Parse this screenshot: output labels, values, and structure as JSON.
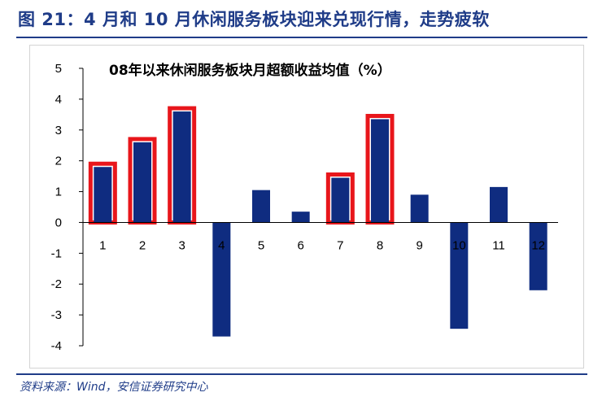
{
  "figure": {
    "title": "图 21：4 月和 10 月休闲服务板块迎来兑现行情，走势疲软",
    "source": "资料来源：Wind，安信证券研究中心"
  },
  "chart_data": {
    "type": "bar",
    "title": "08年以来休闲服务板块月超额收益均值（%）",
    "xlabel": "",
    "ylabel": "",
    "categories": [
      "1",
      "2",
      "3",
      "4",
      "5",
      "6",
      "7",
      "8",
      "9",
      "10",
      "11",
      "12"
    ],
    "values": [
      1.8,
      2.6,
      3.6,
      -3.7,
      1.05,
      0.35,
      1.45,
      3.35,
      0.9,
      -3.45,
      1.15,
      -2.2
    ],
    "highlighted": [
      "1",
      "2",
      "3",
      "7",
      "8"
    ],
    "ylim": [
      -4,
      5
    ],
    "yticks": [
      "-4",
      "-3",
      "-2",
      "-1",
      "0",
      "1",
      "2",
      "3",
      "4",
      "5"
    ],
    "grid": false,
    "legend": "none",
    "colors": {
      "bar": "#0f2c80",
      "highlight_border": "#e8161b",
      "axis": "#000000"
    }
  }
}
